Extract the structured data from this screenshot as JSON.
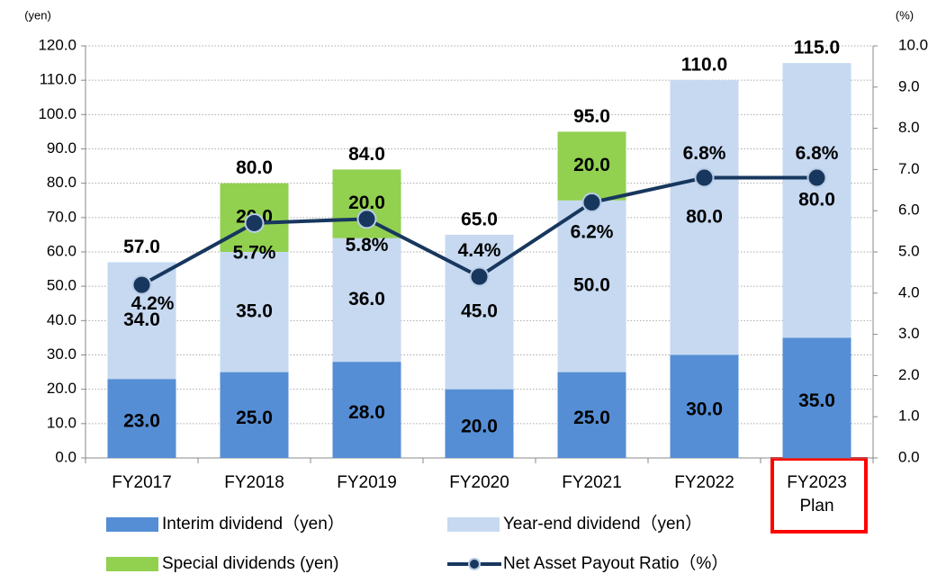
{
  "chart_data": {
    "type": "bar",
    "categories": [
      "FY2017",
      "FY2018",
      "FY2019",
      "FY2020",
      "FY2021",
      "FY2022",
      "FY2023 Plan"
    ],
    "ylabel": "(yen)",
    "y2label": "(%)",
    "ylim": [
      0,
      120
    ],
    "yticks": [
      {
        "value": 0,
        "label": "0.0"
      },
      {
        "value": 10,
        "label": "10.0"
      },
      {
        "value": 20,
        "label": "20.0"
      },
      {
        "value": 30,
        "label": "30.0"
      },
      {
        "value": 40,
        "label": "40.0"
      },
      {
        "value": 50,
        "label": "50.0"
      },
      {
        "value": 60,
        "label": "60.0"
      },
      {
        "value": 70,
        "label": "70.0"
      },
      {
        "value": 80,
        "label": "80.0"
      },
      {
        "value": 90,
        "label": "90.0"
      },
      {
        "value": 100,
        "label": "100.0"
      },
      {
        "value": 110,
        "label": "110.0"
      },
      {
        "value": 120,
        "label": "120.0"
      }
    ],
    "y2lim": [
      0,
      10
    ],
    "y2ticks": [
      {
        "value": 0,
        "label": "0.0"
      },
      {
        "value": 1,
        "label": "1.0"
      },
      {
        "value": 2,
        "label": "2.0"
      },
      {
        "value": 3,
        "label": "3.0"
      },
      {
        "value": 4,
        "label": "4.0"
      },
      {
        "value": 5,
        "label": "5.0"
      },
      {
        "value": 6,
        "label": "6.0"
      },
      {
        "value": 7,
        "label": "7.0"
      },
      {
        "value": 8,
        "label": "8.0"
      },
      {
        "value": 9,
        "label": "9.0"
      },
      {
        "value": 10,
        "label": "10.0"
      }
    ],
    "grid": true,
    "series": [
      {
        "name": "Interim dividend（yen）",
        "color": "#558ed5",
        "values": [
          23,
          25,
          28,
          20,
          25,
          30,
          35
        ],
        "value_labels": [
          "23.0",
          "25.0",
          "28.0",
          "20.0",
          "25.0",
          "30.0",
          "35.0"
        ]
      },
      {
        "name": "Year-end dividend（yen）",
        "color": "#c6d9f1",
        "values": [
          34,
          35,
          36,
          45,
          50,
          80,
          80
        ],
        "value_labels": [
          "34.0",
          "35.0",
          "36.0",
          "45.0",
          "50.0",
          "80.0",
          "80.0"
        ]
      },
      {
        "name": "Special dividends (yen)",
        "color": "#92d050",
        "values": [
          null,
          20,
          20,
          null,
          20,
          null,
          null
        ],
        "value_labels": [
          null,
          "20.0",
          "20.0",
          null,
          "20.0",
          null,
          null
        ]
      },
      {
        "name": "Net Asset Payout Ratio（%）",
        "type": "line",
        "axis": "y2",
        "color": "#17375e",
        "values": [
          4.2,
          5.7,
          5.8,
          4.4,
          6.2,
          6.8,
          6.8
        ],
        "value_labels": [
          "4.2%",
          "5.7%",
          "5.8%",
          "4.4%",
          "6.2%",
          "6.8%",
          "6.8%"
        ]
      }
    ],
    "totals": {
      "values": [
        57,
        80,
        84,
        65,
        95,
        110,
        115
      ],
      "value_labels": [
        "57.0",
        "80.0",
        "84.0",
        "65.0",
        "95.0",
        "110.0",
        "115.0"
      ]
    }
  }
}
